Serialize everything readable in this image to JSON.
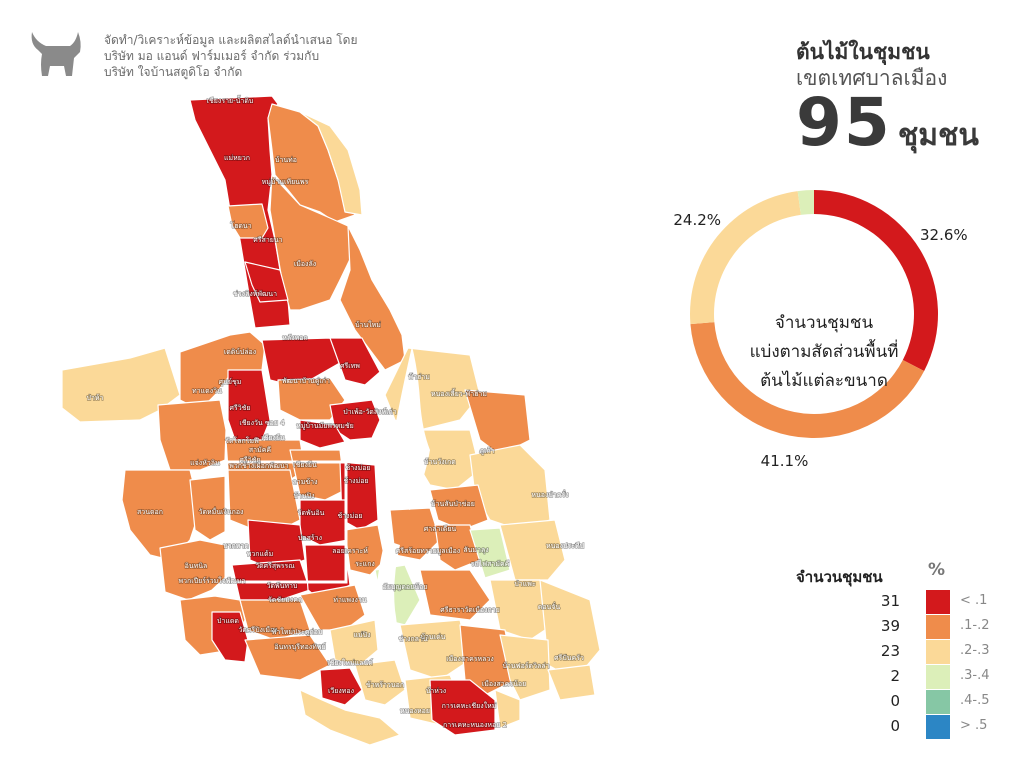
{
  "credit": {
    "line1": "จัดทำ/วิเคราะห์ข้อมูล และผลิตสไลด์นำเสนอ โดย",
    "line2": "บริษัท มอ แอนด์ ฟาร์มเมอร์ จำกัด ร่วมกับ",
    "line3": "บริษัท ใจบ้านสตูดิโอ จำกัด"
  },
  "title": {
    "line1": "ต้นไม้ในชุมชน",
    "line2": "เขตเทศบาลเมือง",
    "number": "95",
    "unit": "ชุมชน"
  },
  "center_label": {
    "line1": "จำนวนชุมชน",
    "line2": "แบ่งตามสัดส่วนพื้นที่",
    "line3": "ต้นไม้แต่ละขนาด"
  },
  "colors": {
    "c1": "#d3191c",
    "c2": "#ef8c4b",
    "c3": "#fbd998",
    "c4": "#dcefb9",
    "c5": "#86c7a5",
    "c6": "#2c86c5"
  },
  "chart_data": {
    "type": "pie",
    "donut": true,
    "slices": [
      {
        "label": "< .1",
        "value": 32.6,
        "value_label": "32.6%",
        "color": "#d3191c"
      },
      {
        "label": ".1-.2",
        "value": 41.1,
        "value_label": "41.1%",
        "color": "#ef8c4b"
      },
      {
        "label": ".2-.3",
        "value": 24.2,
        "value_label": "24.2%",
        "color": "#fbd998"
      },
      {
        "label": ".3-.4",
        "value": 2.1,
        "value_label": "2.1%",
        "color": "#dcefb9"
      }
    ]
  },
  "legend": {
    "count_header": "จำนวนชุมชน",
    "pct_header": "%",
    "rows": [
      {
        "count": "31",
        "label": "< .1",
        "color": "#d3191c"
      },
      {
        "count": "39",
        "label": ".1-.2",
        "color": "#ef8c4b"
      },
      {
        "count": "23",
        "label": ".2-.3",
        "color": "#fbd998"
      },
      {
        "count": "2",
        "label": ".3-.4",
        "color": "#dcefb9"
      },
      {
        "count": "0",
        "label": ".4-.5",
        "color": "#86c7a5"
      },
      {
        "count": "0",
        "label": "> .5",
        "color": "#2c86c5"
      }
    ]
  },
  "map_labels": [
    "เชียงราย-น้ำดิบ",
    "แม่หยวก",
    "บ้านท่อ",
    "หมู่บ้านเทียนพร",
    "โฮดนา",
    "ศรีสายนา",
    "เมืองลัง",
    "ช่วงสิงห์พัฒนา",
    "บ้านใหม่",
    "หลังทอก",
    "เดติบ์ปล่อง",
    "ทาแดงวิน",
    "ศูนย์ชุม",
    "พัฒนาบ้านดู่เก่า",
    "ศรีเทพ",
    "ป่าห้า",
    "ป่าเพ้อ-วัดสิงห์เก่า",
    "ฟ้าฮ่าม",
    "หนองเสี้ยว-ฟ้าฮ่าม",
    "ศรีวิชัย",
    "เชียงวัน ซอย 4",
    "หมู่บ้านมัยพรหมชัย",
    "วัดโลกโมฬี",
    "เชียงยืน",
    "สามัคคี",
    "ศรีวิชัย",
    "แจ่งหัวลิน",
    "พวกช้างเผือกพัฒนา",
    "เชียงยืน",
    "ช้างม่อย",
    "บ้านวังเกด",
    "ภูเก้า",
    "สวนดอก",
    "วัดหมื่นเงินกอง",
    "บ้านปิง",
    "ช้างม่อย",
    "หนองป่าครั่ง",
    "ลามข้าง",
    "บ้านสันป่าข่อย",
    "ช้างม่อย",
    "ศาลาเดียน",
    "บวกหาด",
    "วัดพันอิน",
    "หนองประทีป",
    "อินทนิล",
    "พวกแต้ม",
    "บ่อสร้าง",
    "ลอยเคราะห์",
    "ศรีสร้อยทรายมูลเมือง",
    "สันมาลุง",
    "รถไฟสามัคคี",
    "พวกเปียร์ร่วมใจพัฒนา",
    "วัดศรีสุพรรณ",
    "ระแกง",
    "ป่าแพะ",
    "อัยบุญดอยน้อย",
    "ดอนจั่น",
    "ท่าแพงงาน",
    "วัดชัยมงคล",
    "วัดพันทาบ",
    "ศรีธาราวัดเมืองกาย",
    "วัดศรีปิงเมือง",
    "ฟ้าใหม่ประตูก่อม",
    "ป่าแดด",
    "แม่ปิง",
    "ช่างกลาน",
    "บ้านเด่น",
    "อินทรบุรีทองทิพย์",
    "เชียงใหม่แลนด์",
    "เมืองสาครหลวง",
    "บ้านฟอร์ดวิลล่า",
    "ศรีปันครัว",
    "เวียงทอง",
    "บ้าห่วง",
    "ข้าหร้าวนอก",
    "เมืองสาครน้อย",
    "การเคหะเชียงใหม่",
    "หนองหอย",
    "การเคหะหนองหอย 2"
  ]
}
